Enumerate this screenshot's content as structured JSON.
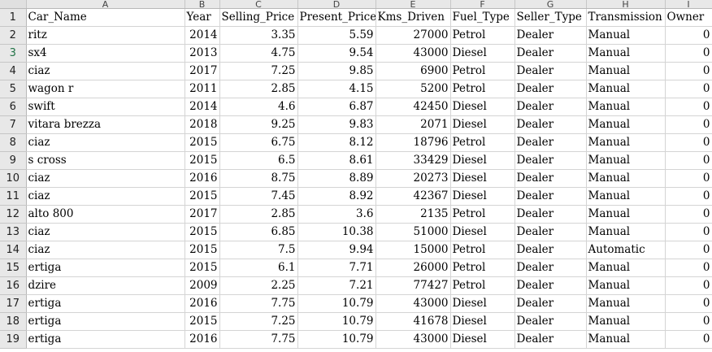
{
  "columns": [
    "A",
    "B",
    "C",
    "D",
    "E",
    "F",
    "G",
    "H",
    "I"
  ],
  "header_row": {
    "number": "1",
    "cells": [
      "Car_Name",
      "Year",
      "Selling_Price",
      "Present_Price",
      "Kms_Driven",
      "Fuel_Type",
      "Seller_Type",
      "Transmission",
      "Owner"
    ]
  },
  "rows": [
    {
      "number": "2",
      "cells": [
        "ritz",
        "2014",
        "3.35",
        "5.59",
        "27000",
        "Petrol",
        "Dealer",
        "Manual",
        "0"
      ]
    },
    {
      "number": "3",
      "cells": [
        "sx4",
        "2013",
        "4.75",
        "9.54",
        "43000",
        "Diesel",
        "Dealer",
        "Manual",
        "0"
      ]
    },
    {
      "number": "4",
      "cells": [
        "ciaz",
        "2017",
        "7.25",
        "9.85",
        "6900",
        "Petrol",
        "Dealer",
        "Manual",
        "0"
      ]
    },
    {
      "number": "5",
      "cells": [
        "wagon r",
        "2011",
        "2.85",
        "4.15",
        "5200",
        "Petrol",
        "Dealer",
        "Manual",
        "0"
      ]
    },
    {
      "number": "6",
      "cells": [
        "swift",
        "2014",
        "4.6",
        "6.87",
        "42450",
        "Diesel",
        "Dealer",
        "Manual",
        "0"
      ]
    },
    {
      "number": "7",
      "cells": [
        "vitara brezza",
        "2018",
        "9.25",
        "9.83",
        "2071",
        "Diesel",
        "Dealer",
        "Manual",
        "0"
      ]
    },
    {
      "number": "8",
      "cells": [
        "ciaz",
        "2015",
        "6.75",
        "8.12",
        "18796",
        "Petrol",
        "Dealer",
        "Manual",
        "0"
      ]
    },
    {
      "number": "9",
      "cells": [
        "s cross",
        "2015",
        "6.5",
        "8.61",
        "33429",
        "Diesel",
        "Dealer",
        "Manual",
        "0"
      ]
    },
    {
      "number": "10",
      "cells": [
        "ciaz",
        "2016",
        "8.75",
        "8.89",
        "20273",
        "Diesel",
        "Dealer",
        "Manual",
        "0"
      ]
    },
    {
      "number": "11",
      "cells": [
        "ciaz",
        "2015",
        "7.45",
        "8.92",
        "42367",
        "Diesel",
        "Dealer",
        "Manual",
        "0"
      ]
    },
    {
      "number": "12",
      "cells": [
        "alto 800",
        "2017",
        "2.85",
        "3.6",
        "2135",
        "Petrol",
        "Dealer",
        "Manual",
        "0"
      ]
    },
    {
      "number": "13",
      "cells": [
        "ciaz",
        "2015",
        "6.85",
        "10.38",
        "51000",
        "Diesel",
        "Dealer",
        "Manual",
        "0"
      ]
    },
    {
      "number": "14",
      "cells": [
        "ciaz",
        "2015",
        "7.5",
        "9.94",
        "15000",
        "Petrol",
        "Dealer",
        "Automatic",
        "0"
      ]
    },
    {
      "number": "15",
      "cells": [
        "ertiga",
        "2015",
        "6.1",
        "7.71",
        "26000",
        "Petrol",
        "Dealer",
        "Manual",
        "0"
      ]
    },
    {
      "number": "16",
      "cells": [
        "dzire",
        "2009",
        "2.25",
        "7.21",
        "77427",
        "Petrol",
        "Dealer",
        "Manual",
        "0"
      ]
    },
    {
      "number": "17",
      "cells": [
        "ertiga",
        "2016",
        "7.75",
        "10.79",
        "43000",
        "Diesel",
        "Dealer",
        "Manual",
        "0"
      ]
    },
    {
      "number": "18",
      "cells": [
        "ertiga",
        "2015",
        "7.25",
        "10.79",
        "41678",
        "Diesel",
        "Dealer",
        "Manual",
        "0"
      ]
    },
    {
      "number": "19",
      "cells": [
        "ertiga",
        "2016",
        "7.75",
        "10.79",
        "43000",
        "Diesel",
        "Dealer",
        "Manual",
        "0"
      ]
    }
  ],
  "colors": {
    "gridline": "#d4d4d4",
    "header_bg": "#e8e8e8"
  }
}
